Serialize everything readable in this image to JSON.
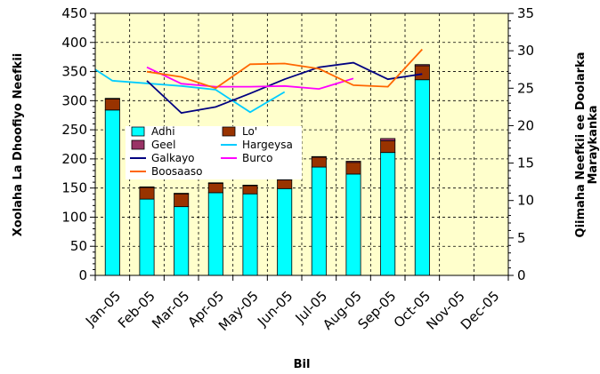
{
  "chart_data": {
    "type": "bar",
    "categories": [
      "Jan-05",
      "Feb-05",
      "Mar-05",
      "Apr-05",
      "May-05",
      "Jun-05",
      "Jul-05",
      "Aug-05",
      "Sep-05",
      "Oct-05",
      "Nov-05",
      "Dec-05"
    ],
    "xlabel": "Bil",
    "ylabel": "Xoolaha La Dhoofiyo Neefkii",
    "y2label_line1": "Qiimaha Neefkii ee Doolarka",
    "y2label_line2": "Maraykanka",
    "ylim": [
      0,
      450
    ],
    "y2lim": [
      0,
      35
    ],
    "yticks": [
      "0",
      "50",
      "100",
      "150",
      "200",
      "250",
      "300",
      "350",
      "400",
      "450"
    ],
    "y2ticks": [
      "0",
      "5",
      "10",
      "15",
      "20",
      "25",
      "30",
      "35"
    ],
    "grid": true,
    "legend_placement": "center-left",
    "bar_series": [
      {
        "name": "Adhi",
        "color": "#00FFFF",
        "values": [
          284,
          131,
          118,
          142,
          140,
          149,
          186,
          174,
          211,
          336,
          null,
          null
        ]
      },
      {
        "name": "Lo'",
        "color": "#993300",
        "values": [
          19,
          20,
          22,
          16,
          14,
          15,
          17,
          20,
          20,
          24,
          null,
          null
        ]
      },
      {
        "name": "Geel",
        "color": "#993366",
        "values": [
          1,
          1,
          1,
          1,
          1,
          1,
          1,
          2,
          4,
          2,
          null,
          null
        ]
      }
    ],
    "line_series": [
      {
        "name": "Hargeysa",
        "color": "#00CCFF",
        "axis": "right",
        "points": [
          [
            "Jan-05",
            27.5
          ],
          [
            "Jan-05",
            26.0
          ],
          [
            "Mar-05",
            25.3
          ],
          [
            "Apr-05",
            24.8
          ],
          [
            "May-05",
            21.8
          ],
          [
            "Jun-05",
            24.5
          ]
        ]
      },
      {
        "name": "Galkayo",
        "color": "#000080",
        "axis": "right",
        "points": [
          [
            "Feb-05",
            26.0
          ],
          [
            "Mar-05",
            21.7
          ],
          [
            "Apr-05",
            22.5
          ],
          [
            "May-05",
            24.3
          ],
          [
            "Jun-05",
            26.2
          ],
          [
            "Jul-05",
            27.8
          ],
          [
            "Aug-05",
            28.4
          ],
          [
            "Sep-05",
            26.2
          ],
          [
            "Oct-05",
            26.9
          ]
        ]
      },
      {
        "name": "Burco",
        "color": "#FF00FF",
        "axis": "right",
        "points": [
          [
            "Feb-05",
            27.8
          ],
          [
            "Mar-05",
            25.6
          ],
          [
            "Apr-05",
            25.2
          ],
          [
            "May-05",
            25.2
          ],
          [
            "Jun-05",
            25.3
          ],
          [
            "Jul-05",
            24.9
          ],
          [
            "Aug-05",
            26.3
          ]
        ]
      },
      {
        "name": "Boosaaso",
        "color": "#FF6600",
        "axis": "right",
        "points": [
          [
            "Feb-05",
            27.2
          ],
          [
            "Mar-05",
            26.5
          ],
          [
            "Apr-05",
            25.0
          ],
          [
            "May-05",
            28.2
          ],
          [
            "Jun-05",
            28.3
          ],
          [
            "Jul-05",
            27.6
          ],
          [
            "Aug-05",
            25.4
          ],
          [
            "Sep-05",
            25.2
          ],
          [
            "Oct-05",
            30.2
          ]
        ]
      }
    ],
    "legend": [
      {
        "label": "Adhi",
        "kind": "box",
        "color": "#00FFFF"
      },
      {
        "label": "Lo'",
        "kind": "box",
        "color": "#993300"
      },
      {
        "label": "Geel",
        "kind": "box",
        "color": "#993366"
      },
      {
        "label": "Hargeysa",
        "kind": "line",
        "color": "#00CCFF"
      },
      {
        "label": "Galkayo",
        "kind": "line",
        "color": "#000080"
      },
      {
        "label": "Burco",
        "kind": "line",
        "color": "#FF00FF"
      },
      {
        "label": "Boosaaso",
        "kind": "line",
        "color": "#FF6600"
      }
    ],
    "plot_background": "#FFFFCC"
  }
}
